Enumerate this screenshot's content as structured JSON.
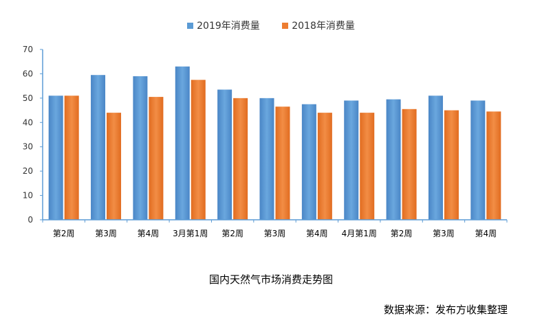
{
  "chart_data": {
    "type": "bar",
    "title": "国内天然气市场消费走势图",
    "categories": [
      "第2周",
      "第3周",
      "第4周",
      "3月第1周",
      "第2周",
      "第3周",
      "第4周",
      "4月第1周",
      "第2周",
      "第3周",
      "第4周"
    ],
    "series": [
      {
        "name": "2019年消费量",
        "values": [
          51,
          59.5,
          59,
          63,
          53.5,
          50,
          47.5,
          49,
          49.5,
          51,
          49
        ]
      },
      {
        "name": "2018年消费量",
        "values": [
          51,
          44,
          50.5,
          57.5,
          50,
          46.5,
          44,
          44,
          45.5,
          45,
          44.5
        ]
      }
    ],
    "ylim": [
      0,
      70
    ],
    "yticks": [
      0,
      10,
      20,
      30,
      40,
      50,
      60,
      70
    ],
    "xlabel": "",
    "ylabel": "",
    "legend_position": "top-center",
    "grid": false
  },
  "colors": {
    "series_2019": "#5b9bd5",
    "series_2018": "#ed7d31"
  },
  "caption": "国内天然气市场消费走势图",
  "source": "数据来源：发布方收集整理"
}
